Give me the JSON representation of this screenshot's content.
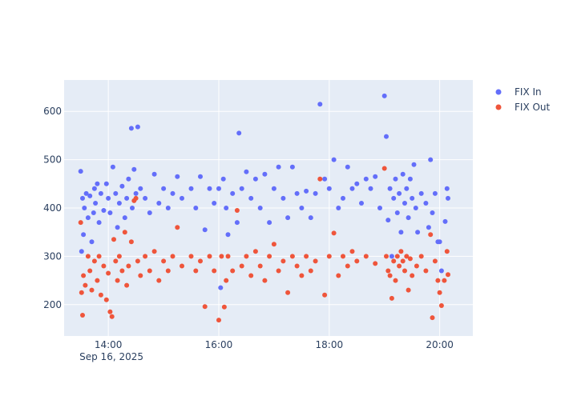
{
  "chart_data": {
    "type": "scatter",
    "title": "",
    "xlabel": "",
    "ylabel": "",
    "x_axis": {
      "type": "time",
      "range": [
        "2025-09-16T13:12:00",
        "2025-09-16T20:36:00"
      ],
      "tick_labels": [
        "14:00",
        "16:00",
        "18:00",
        "20:00"
      ],
      "tick_values": [
        "2025-09-16T14:00:00",
        "2025-09-16T16:00:00",
        "2025-09-16T18:00:00",
        "2025-09-16T20:00:00"
      ],
      "date_label": "Sep 16, 2025"
    },
    "y_axis": {
      "range": [
        135,
        665
      ],
      "ticks": [
        200,
        300,
        400,
        500,
        600
      ]
    },
    "grid": true,
    "legend_position": "top-right",
    "colors": {
      "FIX In": "#636efa",
      "FIX Out": "#ef553b",
      "plot_bg": "#e5ecf6",
      "text": "#2a3f5f"
    },
    "series": [
      {
        "name": "FIX In",
        "color": "#636efa",
        "points": [
          [
            "2025-09-16T13:30",
            476
          ],
          [
            "2025-09-16T13:31",
            310
          ],
          [
            "2025-09-16T13:32",
            420
          ],
          [
            "2025-09-16T13:33",
            345
          ],
          [
            "2025-09-16T13:34",
            400
          ],
          [
            "2025-09-16T13:36",
            430
          ],
          [
            "2025-09-16T13:38",
            380
          ],
          [
            "2025-09-16T13:40",
            425
          ],
          [
            "2025-09-16T13:42",
            330
          ],
          [
            "2025-09-16T13:44",
            390
          ],
          [
            "2025-09-16T13:45",
            440
          ],
          [
            "2025-09-16T13:46",
            410
          ],
          [
            "2025-09-16T13:48",
            450
          ],
          [
            "2025-09-16T13:50",
            370
          ],
          [
            "2025-09-16T13:52",
            430
          ],
          [
            "2025-09-16T13:55",
            395
          ],
          [
            "2025-09-16T13:58",
            450
          ],
          [
            "2025-09-16T14:00",
            420
          ],
          [
            "2025-09-16T14:02",
            390
          ],
          [
            "2025-09-16T14:05",
            485
          ],
          [
            "2025-09-16T14:08",
            430
          ],
          [
            "2025-09-16T14:10",
            360
          ],
          [
            "2025-09-16T14:12",
            410
          ],
          [
            "2025-09-16T14:15",
            445
          ],
          [
            "2025-09-16T14:18",
            380
          ],
          [
            "2025-09-16T14:20",
            420
          ],
          [
            "2025-09-16T14:22",
            460
          ],
          [
            "2025-09-16T14:25",
            565
          ],
          [
            "2025-09-16T14:26",
            400
          ],
          [
            "2025-09-16T14:28",
            480
          ],
          [
            "2025-09-16T14:30",
            430
          ],
          [
            "2025-09-16T14:32",
            568
          ],
          [
            "2025-09-16T14:35",
            440
          ],
          [
            "2025-09-16T14:40",
            420
          ],
          [
            "2025-09-16T14:45",
            390
          ],
          [
            "2025-09-16T14:50",
            470
          ],
          [
            "2025-09-16T14:55",
            410
          ],
          [
            "2025-09-16T15:00",
            440
          ],
          [
            "2025-09-16T15:05",
            400
          ],
          [
            "2025-09-16T15:10",
            430
          ],
          [
            "2025-09-16T15:15",
            465
          ],
          [
            "2025-09-16T15:20",
            420
          ],
          [
            "2025-09-16T15:30",
            440
          ],
          [
            "2025-09-16T15:35",
            400
          ],
          [
            "2025-09-16T15:40",
            465
          ],
          [
            "2025-09-16T15:45",
            355
          ],
          [
            "2025-09-16T15:50",
            440
          ],
          [
            "2025-09-16T15:55",
            410
          ],
          [
            "2025-09-16T16:00",
            440
          ],
          [
            "2025-09-16T16:02",
            235
          ],
          [
            "2025-09-16T16:05",
            460
          ],
          [
            "2025-09-16T16:08",
            400
          ],
          [
            "2025-09-16T16:10",
            345
          ],
          [
            "2025-09-16T16:15",
            430
          ],
          [
            "2025-09-16T16:20",
            370
          ],
          [
            "2025-09-16T16:22",
            555
          ],
          [
            "2025-09-16T16:25",
            440
          ],
          [
            "2025-09-16T16:30",
            475
          ],
          [
            "2025-09-16T16:35",
            420
          ],
          [
            "2025-09-16T16:40",
            460
          ],
          [
            "2025-09-16T16:45",
            400
          ],
          [
            "2025-09-16T16:50",
            470
          ],
          [
            "2025-09-16T16:55",
            370
          ],
          [
            "2025-09-16T17:00",
            440
          ],
          [
            "2025-09-16T17:05",
            485
          ],
          [
            "2025-09-16T17:10",
            420
          ],
          [
            "2025-09-16T17:15",
            380
          ],
          [
            "2025-09-16T17:20",
            485
          ],
          [
            "2025-09-16T17:25",
            430
          ],
          [
            "2025-09-16T17:30",
            400
          ],
          [
            "2025-09-16T17:35",
            435
          ],
          [
            "2025-09-16T17:40",
            380
          ],
          [
            "2025-09-16T17:45",
            430
          ],
          [
            "2025-09-16T17:50",
            615
          ],
          [
            "2025-09-16T17:55",
            460
          ],
          [
            "2025-09-16T18:00",
            440
          ],
          [
            "2025-09-16T18:05",
            500
          ],
          [
            "2025-09-16T18:10",
            400
          ],
          [
            "2025-09-16T18:15",
            420
          ],
          [
            "2025-09-16T18:20",
            485
          ],
          [
            "2025-09-16T18:25",
            440
          ],
          [
            "2025-09-16T18:30",
            450
          ],
          [
            "2025-09-16T18:35",
            410
          ],
          [
            "2025-09-16T18:40",
            460
          ],
          [
            "2025-09-16T18:45",
            440
          ],
          [
            "2025-09-16T18:50",
            465
          ],
          [
            "2025-09-16T18:55",
            400
          ],
          [
            "2025-09-16T19:00",
            632
          ],
          [
            "2025-09-16T19:02",
            548
          ],
          [
            "2025-09-16T19:04",
            375
          ],
          [
            "2025-09-16T19:06",
            440
          ],
          [
            "2025-09-16T19:08",
            300
          ],
          [
            "2025-09-16T19:10",
            420
          ],
          [
            "2025-09-16T19:12",
            460
          ],
          [
            "2025-09-16T19:14",
            390
          ],
          [
            "2025-09-16T19:16",
            430
          ],
          [
            "2025-09-16T19:18",
            350
          ],
          [
            "2025-09-16T19:20",
            470
          ],
          [
            "2025-09-16T19:22",
            410
          ],
          [
            "2025-09-16T19:24",
            440
          ],
          [
            "2025-09-16T19:26",
            380
          ],
          [
            "2025-09-16T19:28",
            460
          ],
          [
            "2025-09-16T19:30",
            420
          ],
          [
            "2025-09-16T19:32",
            490
          ],
          [
            "2025-09-16T19:34",
            400
          ],
          [
            "2025-09-16T19:36",
            350
          ],
          [
            "2025-09-16T19:40",
            430
          ],
          [
            "2025-09-16T19:45",
            410
          ],
          [
            "2025-09-16T19:48",
            360
          ],
          [
            "2025-09-16T19:50",
            500
          ],
          [
            "2025-09-16T19:52",
            390
          ],
          [
            "2025-09-16T19:55",
            430
          ],
          [
            "2025-09-16T19:58",
            330
          ],
          [
            "2025-09-16T20:00",
            330
          ],
          [
            "2025-09-16T20:02",
            270
          ],
          [
            "2025-09-16T20:06",
            372
          ],
          [
            "2025-09-16T20:08",
            440
          ],
          [
            "2025-09-16T20:09",
            420
          ]
        ]
      },
      {
        "name": "FIX Out",
        "color": "#ef553b",
        "points": [
          [
            "2025-09-16T13:30",
            370
          ],
          [
            "2025-09-16T13:31",
            225
          ],
          [
            "2025-09-16T13:32",
            178
          ],
          [
            "2025-09-16T13:33",
            260
          ],
          [
            "2025-09-16T13:35",
            240
          ],
          [
            "2025-09-16T13:38",
            300
          ],
          [
            "2025-09-16T13:40",
            270
          ],
          [
            "2025-09-16T13:42",
            230
          ],
          [
            "2025-09-16T13:45",
            290
          ],
          [
            "2025-09-16T13:48",
            250
          ],
          [
            "2025-09-16T13:50",
            300
          ],
          [
            "2025-09-16T13:52",
            220
          ],
          [
            "2025-09-16T13:55",
            280
          ],
          [
            "2025-09-16T13:58",
            210
          ],
          [
            "2025-09-16T14:00",
            265
          ],
          [
            "2025-09-16T14:02",
            185
          ],
          [
            "2025-09-16T14:04",
            175
          ],
          [
            "2025-09-16T14:06",
            335
          ],
          [
            "2025-09-16T14:08",
            290
          ],
          [
            "2025-09-16T14:10",
            250
          ],
          [
            "2025-09-16T14:12",
            300
          ],
          [
            "2025-09-16T14:15",
            270
          ],
          [
            "2025-09-16T14:18",
            350
          ],
          [
            "2025-09-16T14:20",
            240
          ],
          [
            "2025-09-16T14:22",
            280
          ],
          [
            "2025-09-16T14:25",
            330
          ],
          [
            "2025-09-16T14:28",
            415
          ],
          [
            "2025-09-16T14:30",
            420
          ],
          [
            "2025-09-16T14:32",
            290
          ],
          [
            "2025-09-16T14:35",
            260
          ],
          [
            "2025-09-16T14:40",
            300
          ],
          [
            "2025-09-16T14:45",
            270
          ],
          [
            "2025-09-16T14:50",
            310
          ],
          [
            "2025-09-16T14:55",
            250
          ],
          [
            "2025-09-16T15:00",
            290
          ],
          [
            "2025-09-16T15:05",
            270
          ],
          [
            "2025-09-16T15:10",
            300
          ],
          [
            "2025-09-16T15:15",
            360
          ],
          [
            "2025-09-16T15:20",
            280
          ],
          [
            "2025-09-16T15:30",
            300
          ],
          [
            "2025-09-16T15:35",
            270
          ],
          [
            "2025-09-16T15:40",
            290
          ],
          [
            "2025-09-16T15:45",
            196
          ],
          [
            "2025-09-16T15:50",
            300
          ],
          [
            "2025-09-16T15:55",
            270
          ],
          [
            "2025-09-16T16:00",
            168
          ],
          [
            "2025-09-16T16:03",
            300
          ],
          [
            "2025-09-16T16:06",
            195
          ],
          [
            "2025-09-16T16:08",
            250
          ],
          [
            "2025-09-16T16:10",
            300
          ],
          [
            "2025-09-16T16:15",
            270
          ],
          [
            "2025-09-16T16:20",
            395
          ],
          [
            "2025-09-16T16:25",
            280
          ],
          [
            "2025-09-16T16:30",
            300
          ],
          [
            "2025-09-16T16:35",
            260
          ],
          [
            "2025-09-16T16:40",
            310
          ],
          [
            "2025-09-16T16:45",
            280
          ],
          [
            "2025-09-16T16:50",
            250
          ],
          [
            "2025-09-16T16:55",
            300
          ],
          [
            "2025-09-16T17:00",
            325
          ],
          [
            "2025-09-16T17:05",
            270
          ],
          [
            "2025-09-16T17:10",
            290
          ],
          [
            "2025-09-16T17:15",
            225
          ],
          [
            "2025-09-16T17:20",
            300
          ],
          [
            "2025-09-16T17:25",
            280
          ],
          [
            "2025-09-16T17:30",
            260
          ],
          [
            "2025-09-16T17:35",
            300
          ],
          [
            "2025-09-16T17:40",
            270
          ],
          [
            "2025-09-16T17:45",
            290
          ],
          [
            "2025-09-16T17:50",
            460
          ],
          [
            "2025-09-16T17:55",
            220
          ],
          [
            "2025-09-16T18:00",
            300
          ],
          [
            "2025-09-16T18:05",
            348
          ],
          [
            "2025-09-16T18:10",
            260
          ],
          [
            "2025-09-16T18:15",
            300
          ],
          [
            "2025-09-16T18:20",
            280
          ],
          [
            "2025-09-16T18:25",
            310
          ],
          [
            "2025-09-16T18:30",
            290
          ],
          [
            "2025-09-16T18:40",
            300
          ],
          [
            "2025-09-16T18:50",
            285
          ],
          [
            "2025-09-16T19:00",
            482
          ],
          [
            "2025-09-16T19:02",
            300
          ],
          [
            "2025-09-16T19:04",
            270
          ],
          [
            "2025-09-16T19:06",
            260
          ],
          [
            "2025-09-16T19:08",
            213
          ],
          [
            "2025-09-16T19:10",
            290
          ],
          [
            "2025-09-16T19:12",
            250
          ],
          [
            "2025-09-16T19:14",
            300
          ],
          [
            "2025-09-16T19:16",
            280
          ],
          [
            "2025-09-16T19:18",
            310
          ],
          [
            "2025-09-16T19:20",
            290
          ],
          [
            "2025-09-16T19:22",
            270
          ],
          [
            "2025-09-16T19:24",
            300
          ],
          [
            "2025-09-16T19:26",
            230
          ],
          [
            "2025-09-16T19:28",
            295
          ],
          [
            "2025-09-16T19:30",
            260
          ],
          [
            "2025-09-16T19:35",
            280
          ],
          [
            "2025-09-16T19:40",
            300
          ],
          [
            "2025-09-16T19:45",
            270
          ],
          [
            "2025-09-16T19:50",
            345
          ],
          [
            "2025-09-16T19:52",
            173
          ],
          [
            "2025-09-16T19:55",
            290
          ],
          [
            "2025-09-16T19:58",
            250
          ],
          [
            "2025-09-16T20:00",
            225
          ],
          [
            "2025-09-16T20:02",
            198
          ],
          [
            "2025-09-16T20:05",
            250
          ],
          [
            "2025-09-16T20:08",
            310
          ],
          [
            "2025-09-16T20:09",
            262
          ]
        ]
      }
    ]
  }
}
